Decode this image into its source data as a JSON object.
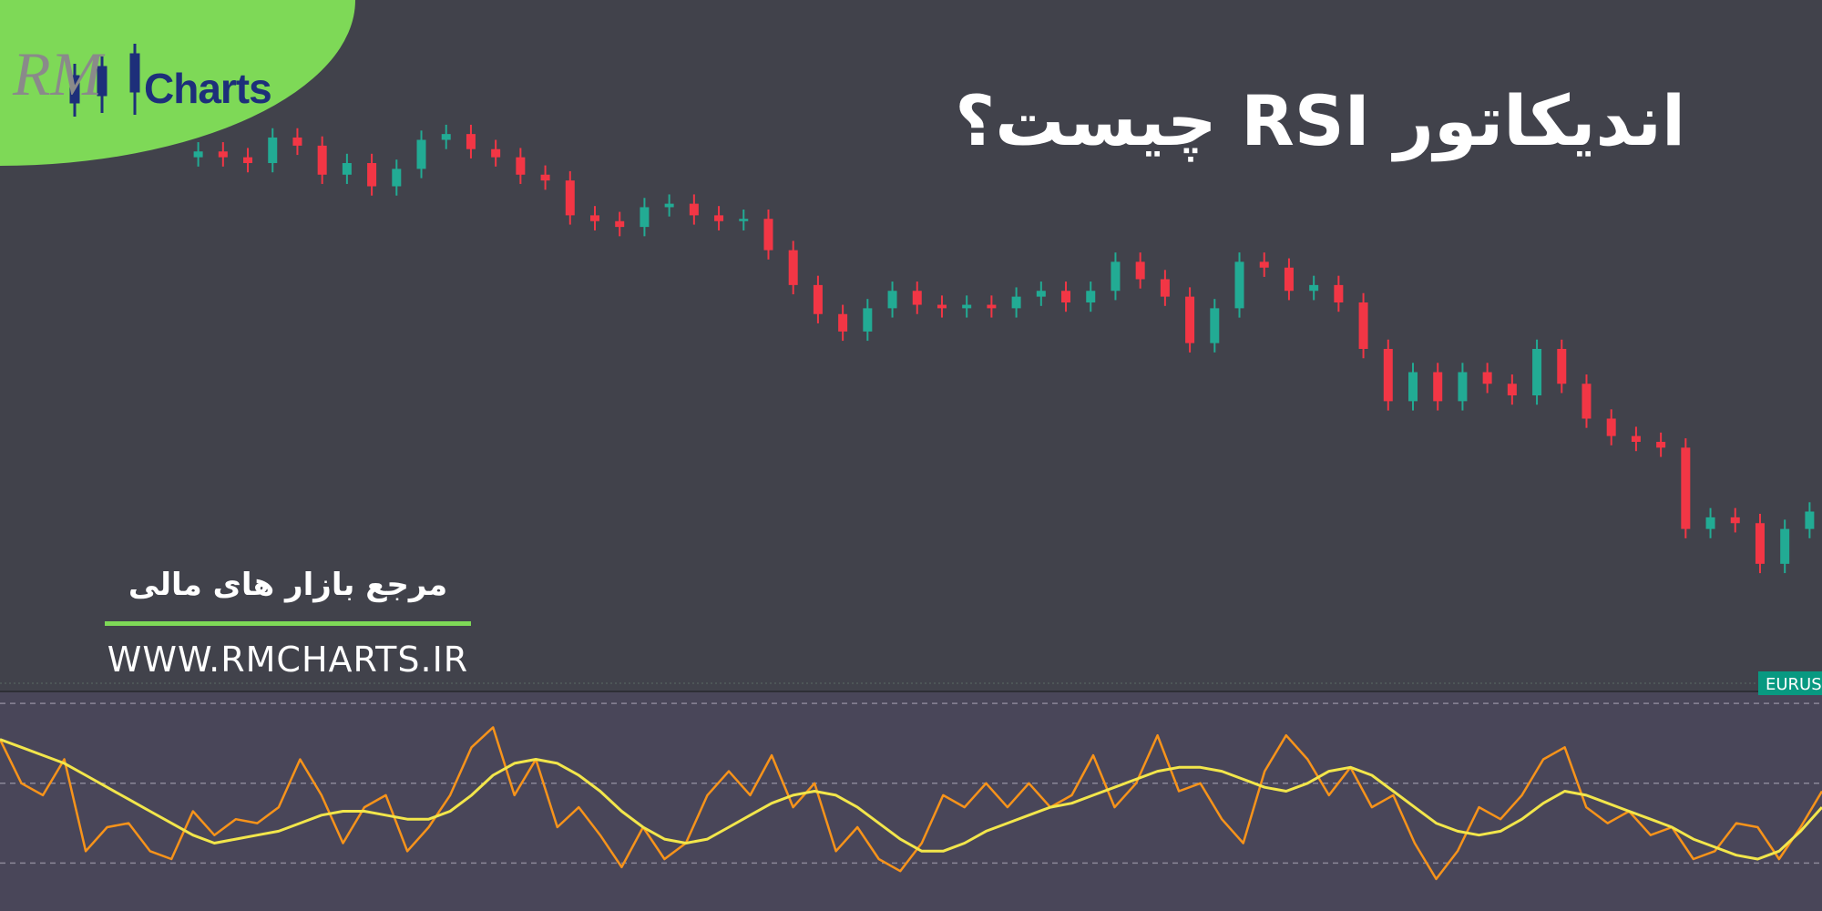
{
  "logo": {
    "script": "RM",
    "text": "Charts"
  },
  "title": "اندیکاتور RSI چیست؟",
  "subtitle": "مرجع بازار های مالی",
  "website": "WWW.RMCHARTS.IR",
  "symbol_tag": "EURUS",
  "chart_data": [
    {
      "type": "candlestick",
      "ylim": [
        0,
        400
      ],
      "up_color": "#22ab94",
      "down_color": "#f23645",
      "open": [
        365,
        370,
        365,
        360,
        382,
        375,
        350,
        360,
        340,
        355,
        380,
        385,
        372,
        365,
        350,
        345,
        315,
        310,
        305,
        322,
        325,
        315,
        310,
        312,
        285,
        255,
        230,
        215,
        235,
        250,
        238,
        235,
        238,
        235,
        245,
        250,
        240,
        250,
        275,
        260,
        245,
        205,
        235,
        275,
        270,
        250,
        255,
        240,
        200,
        155,
        180,
        155,
        180,
        170,
        160,
        200,
        170,
        140,
        125,
        120,
        115,
        45,
        55,
        50,
        15,
        45
      ],
      "high": [
        378,
        378,
        373,
        390,
        390,
        383,
        368,
        368,
        363,
        388,
        393,
        393,
        380,
        373,
        358,
        353,
        323,
        318,
        330,
        333,
        333,
        323,
        320,
        320,
        293,
        263,
        238,
        243,
        258,
        258,
        246,
        246,
        246,
        253,
        258,
        258,
        258,
        283,
        283,
        268,
        253,
        243,
        283,
        283,
        278,
        263,
        263,
        248,
        208,
        188,
        188,
        188,
        188,
        178,
        208,
        208,
        178,
        148,
        133,
        128,
        123,
        63,
        63,
        58,
        53,
        68
      ],
      "low": [
        357,
        357,
        352,
        352,
        367,
        342,
        342,
        332,
        332,
        347,
        372,
        364,
        357,
        342,
        337,
        307,
        302,
        297,
        297,
        314,
        307,
        302,
        302,
        277,
        247,
        222,
        207,
        207,
        227,
        230,
        227,
        227,
        227,
        227,
        237,
        232,
        232,
        242,
        252,
        237,
        197,
        197,
        227,
        262,
        242,
        242,
        232,
        192,
        147,
        147,
        147,
        147,
        162,
        152,
        152,
        162,
        132,
        117,
        112,
        107,
        37,
        37,
        42,
        7,
        7,
        37
      ],
      "close": [
        370,
        365,
        360,
        382,
        375,
        350,
        360,
        340,
        355,
        380,
        385,
        372,
        365,
        350,
        345,
        315,
        310,
        305,
        322,
        325,
        315,
        310,
        312,
        285,
        255,
        230,
        215,
        235,
        250,
        238,
        235,
        238,
        235,
        245,
        250,
        240,
        250,
        275,
        260,
        245,
        205,
        235,
        275,
        270,
        250,
        255,
        240,
        200,
        155,
        180,
        155,
        180,
        170,
        160,
        200,
        170,
        140,
        125,
        120,
        115,
        45,
        55,
        50,
        15,
        45,
        60
      ]
    },
    {
      "type": "line",
      "ylim": [
        18,
        73
      ],
      "hlines": [
        70,
        50,
        30
      ],
      "series": [
        {
          "color": "#f7931a",
          "values": [
            61,
            50,
            47,
            56,
            33,
            39,
            40,
            33,
            31,
            43,
            37,
            41,
            40,
            44,
            56,
            47,
            35,
            44,
            47,
            33,
            39,
            47,
            59,
            64,
            47,
            56,
            39,
            44,
            37,
            29,
            39,
            31,
            35,
            47,
            53,
            47,
            57,
            44,
            50,
            33,
            39,
            31,
            28,
            35,
            47,
            44,
            50,
            44,
            50,
            44,
            47,
            57,
            44,
            50,
            62,
            48,
            50,
            41,
            35,
            53,
            62,
            56,
            47,
            54,
            44,
            47,
            35,
            26,
            33,
            44,
            41,
            47,
            56,
            59,
            44,
            40,
            43,
            37,
            39,
            31,
            33,
            40,
            39,
            31,
            39,
            48
          ]
        },
        {
          "color": "#f2e64b",
          "values": [
            61,
            59,
            57,
            55,
            52,
            49,
            46,
            43,
            40,
            37,
            35,
            36,
            37,
            38,
            40,
            42,
            43,
            43,
            42,
            41,
            41,
            43,
            47,
            52,
            55,
            56,
            55,
            52,
            48,
            43,
            39,
            36,
            35,
            36,
            39,
            42,
            45,
            47,
            48,
            47,
            44,
            40,
            36,
            33,
            33,
            35,
            38,
            40,
            42,
            44,
            45,
            47,
            49,
            51,
            53,
            54,
            54,
            53,
            51,
            49,
            48,
            50,
            53,
            54,
            52,
            48,
            44,
            40,
            38,
            37,
            38,
            41,
            45,
            48,
            47,
            45,
            43,
            41,
            39,
            36,
            34,
            32,
            31,
            33,
            38,
            44
          ]
        }
      ]
    }
  ]
}
